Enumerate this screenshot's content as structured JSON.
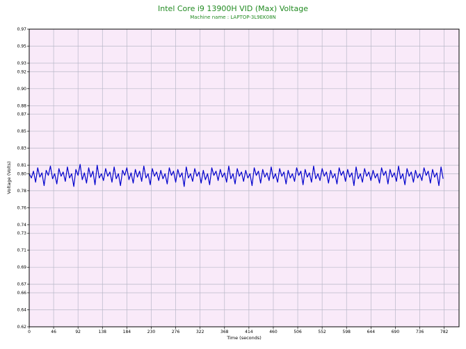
{
  "chart_data": {
    "type": "line",
    "title": "Intel Core i9 13900H VID (Max) Voltage",
    "subtitle": "Machine name : LAPTOP-3L9EK08N",
    "xlabel": "Time (seconds)",
    "ylabel": "Voltage (Volts)",
    "xlim": [
      0,
      810
    ],
    "ylim": [
      0.62,
      0.97
    ],
    "x_ticks": [
      0,
      46,
      92,
      138,
      184,
      230,
      276,
      322,
      368,
      414,
      460,
      506,
      552,
      598,
      644,
      690,
      736,
      782
    ],
    "y_ticks": [
      0.62,
      0.64,
      0.66,
      0.67,
      0.69,
      0.71,
      0.73,
      0.74,
      0.76,
      0.78,
      0.8,
      0.81,
      0.83,
      0.85,
      0.87,
      0.88,
      0.9,
      0.92,
      0.93,
      0.95,
      0.97
    ],
    "grid": true,
    "series": [
      {
        "name": "",
        "color": "#0000cc",
        "x_start": 0,
        "x_step": 4,
        "values": [
          0.8,
          0.795,
          0.803,
          0.79,
          0.807,
          0.796,
          0.801,
          0.786,
          0.804,
          0.798,
          0.809,
          0.794,
          0.8,
          0.788,
          0.806,
          0.797,
          0.802,
          0.791,
          0.808,
          0.795,
          0.8,
          0.785,
          0.805,
          0.798,
          0.811,
          0.793,
          0.801,
          0.789,
          0.807,
          0.796,
          0.803,
          0.787,
          0.81,
          0.795,
          0.8,
          0.792,
          0.806,
          0.797,
          0.802,
          0.79,
          0.808,
          0.794,
          0.8,
          0.786,
          0.804,
          0.798,
          0.807,
          0.793,
          0.801,
          0.789,
          0.805,
          0.796,
          0.803,
          0.791,
          0.809,
          0.795,
          0.8,
          0.787,
          0.806,
          0.797,
          0.802,
          0.792,
          0.804,
          0.794,
          0.8,
          0.788,
          0.807,
          0.798,
          0.803,
          0.79,
          0.805,
          0.796,
          0.801,
          0.785,
          0.808,
          0.795,
          0.8,
          0.791,
          0.806,
          0.797,
          0.802,
          0.789,
          0.804,
          0.793,
          0.8,
          0.787,
          0.807,
          0.798,
          0.803,
          0.792,
          0.805,
          0.796,
          0.801,
          0.79,
          0.809,
          0.794,
          0.8,
          0.788,
          0.806,
          0.797,
          0.802,
          0.791,
          0.804,
          0.795,
          0.8,
          0.786,
          0.807,
          0.798,
          0.803,
          0.789,
          0.805,
          0.796,
          0.801,
          0.792,
          0.808,
          0.794,
          0.8,
          0.79,
          0.806,
          0.797,
          0.802,
          0.788,
          0.804,
          0.795,
          0.8,
          0.791,
          0.807,
          0.798,
          0.803,
          0.787,
          0.805,
          0.796,
          0.801,
          0.79,
          0.809,
          0.794,
          0.8,
          0.792,
          0.806,
          0.797,
          0.802,
          0.789,
          0.804,
          0.795,
          0.8,
          0.788,
          0.807,
          0.798,
          0.803,
          0.791,
          0.805,
          0.796,
          0.801,
          0.786,
          0.808,
          0.794,
          0.8,
          0.79,
          0.806,
          0.797,
          0.802,
          0.792,
          0.804,
          0.795,
          0.8,
          0.789,
          0.807,
          0.798,
          0.803,
          0.788,
          0.805,
          0.796,
          0.801,
          0.791,
          0.809,
          0.794,
          0.8,
          0.787,
          0.806,
          0.797,
          0.802,
          0.79,
          0.804,
          0.795,
          0.8,
          0.792,
          0.807,
          0.798,
          0.803,
          0.789,
          0.805,
          0.796,
          0.801,
          0.786,
          0.808,
          0.794
        ]
      }
    ]
  }
}
